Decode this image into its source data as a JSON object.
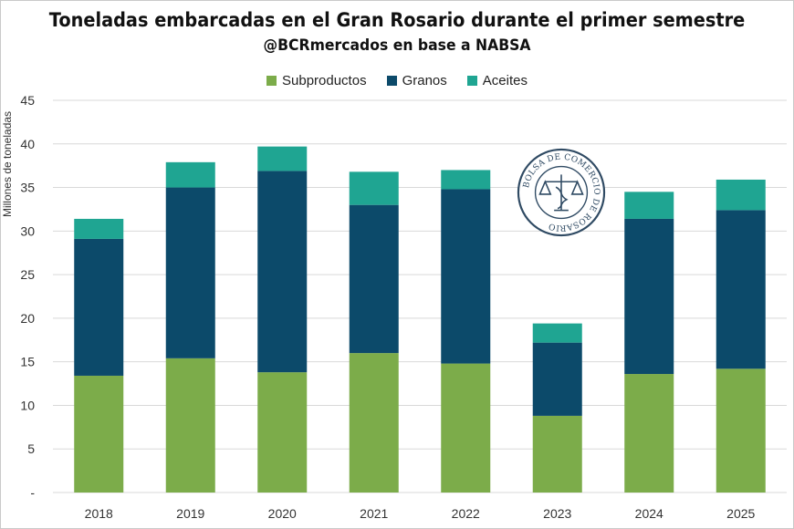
{
  "chart_data": {
    "type": "bar",
    "stacked": true,
    "title": "Toneladas embarcadas en el Gran Rosario durante el primer semestre",
    "subtitle": "@BCRmercados en base a NABSA",
    "ylabel": "Millones de toneladas",
    "xlabel": "",
    "ylim": [
      0,
      45
    ],
    "yticks": [
      "-",
      "5",
      "10",
      "15",
      "20",
      "25",
      "30",
      "35",
      "40",
      "45"
    ],
    "grid": true,
    "legend_position": "top-center",
    "categories": [
      "2018",
      "2019",
      "2020",
      "2021",
      "2022",
      "2023",
      "2024",
      "2025"
    ],
    "series": [
      {
        "name": "Subproductos",
        "color": "#7cac4a",
        "values": [
          13.4,
          15.4,
          13.8,
          16.0,
          14.8,
          8.8,
          13.6,
          14.2
        ]
      },
      {
        "name": "Granos",
        "color": "#0c4a6a",
        "values": [
          15.7,
          19.6,
          23.1,
          17.0,
          20.0,
          8.4,
          17.8,
          18.2
        ]
      },
      {
        "name": "Aceites",
        "color": "#1fa592",
        "values": [
          2.3,
          2.9,
          2.8,
          3.8,
          2.2,
          2.2,
          3.1,
          3.5
        ]
      }
    ]
  },
  "seal": {
    "text": "BOLSA DE COMERCIO DE ROSARIO"
  }
}
